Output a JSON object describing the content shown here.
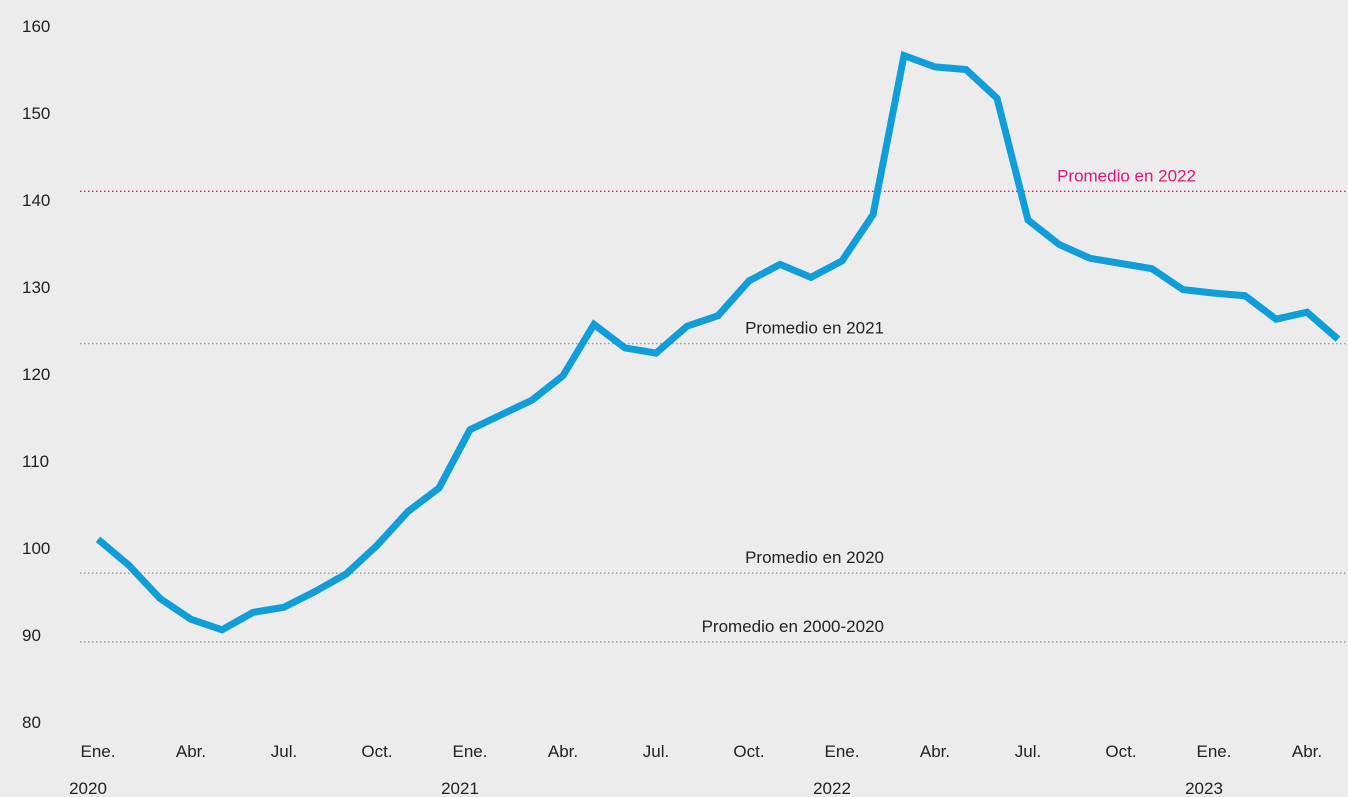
{
  "chart_data": {
    "type": "line",
    "title": "",
    "xlabel": "",
    "ylabel": "",
    "ylim": [
      80,
      160
    ],
    "yticks": [
      80,
      90,
      100,
      110,
      120,
      130,
      140,
      150,
      160
    ],
    "grid": false,
    "x": [
      "2020-01",
      "2020-02",
      "2020-03",
      "2020-04",
      "2020-05",
      "2020-06",
      "2020-07",
      "2020-08",
      "2020-09",
      "2020-10",
      "2020-11",
      "2020-12",
      "2021-01",
      "2021-02",
      "2021-03",
      "2021-04",
      "2021-05",
      "2021-06",
      "2021-07",
      "2021-08",
      "2021-09",
      "2021-10",
      "2021-11",
      "2021-12",
      "2022-01",
      "2022-02",
      "2022-03",
      "2022-04",
      "2022-05",
      "2022-06",
      "2022-07",
      "2022-08",
      "2022-09",
      "2022-10",
      "2022-11",
      "2022-12",
      "2023-01",
      "2023-02",
      "2023-03",
      "2023-04",
      "2023-05"
    ],
    "series": [
      {
        "color": "#0f9ed9",
        "values": [
          101.0,
          98.0,
          94.2,
          91.8,
          90.6,
          92.6,
          93.2,
          95.0,
          97.0,
          100.3,
          104.2,
          106.9,
          113.6,
          115.3,
          117.0,
          119.8,
          125.7,
          123.0,
          122.4,
          125.5,
          126.7,
          130.7,
          132.6,
          131.1,
          133.0,
          138.3,
          156.6,
          155.3,
          155.0,
          151.7,
          137.7,
          134.9,
          133.3,
          132.7,
          132.1,
          129.7,
          129.3,
          129.0,
          126.3,
          127.1,
          124.0
        ]
      }
    ],
    "x_tick_labels": [
      {
        "x": "2020-01",
        "label": "Ene."
      },
      {
        "x": "2020-04",
        "label": "Abr."
      },
      {
        "x": "2020-07",
        "label": "Jul."
      },
      {
        "x": "2020-10",
        "label": "Oct."
      },
      {
        "x": "2021-01",
        "label": "Ene."
      },
      {
        "x": "2021-04",
        "label": "Abr."
      },
      {
        "x": "2021-07",
        "label": "Jul."
      },
      {
        "x": "2021-10",
        "label": "Oct."
      },
      {
        "x": "2022-01",
        "label": "Ene."
      },
      {
        "x": "2022-04",
        "label": "Abr."
      },
      {
        "x": "2022-07",
        "label": "Jul."
      },
      {
        "x": "2022-10",
        "label": "Oct."
      },
      {
        "x": "2023-01",
        "label": "Ene."
      },
      {
        "x": "2023-04",
        "label": "Abr."
      }
    ],
    "year_labels": [
      {
        "x": "2020-01",
        "label": "2020"
      },
      {
        "x": "2021-01",
        "label": "2021"
      },
      {
        "x": "2022-01",
        "label": "2022"
      },
      {
        "x": "2023-01",
        "label": "2023"
      }
    ],
    "reference_lines": [
      {
        "label": "Promedio en 2022",
        "value": 141.0,
        "color": "#e0157a"
      },
      {
        "label": "Promedio en 2021",
        "value": 123.5,
        "color": "#999999"
      },
      {
        "label": "Promedio en 2020",
        "value": 97.1,
        "color": "#999999"
      },
      {
        "label": "Promedio en 2000-2020",
        "value": 89.2,
        "color": "#999999"
      }
    ]
  }
}
